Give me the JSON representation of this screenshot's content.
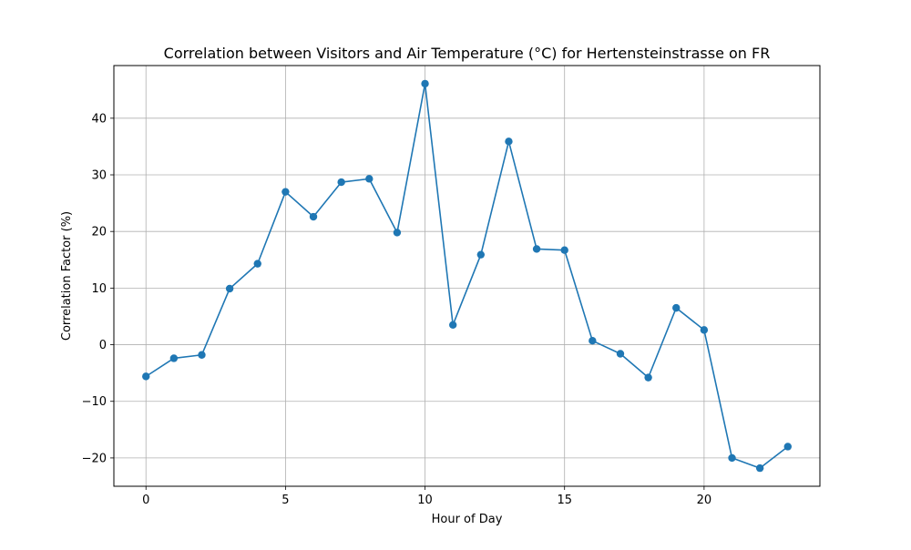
{
  "chart_data": {
    "type": "line",
    "title": "Correlation between Visitors and Air Temperature (°C) for Hertensteinstrasse on FR",
    "xlabel": "Hour of Day",
    "ylabel": "Correlation Factor (%)",
    "xlim": [
      -1.15,
      24.15
    ],
    "ylim": [
      -25.0,
      49.3
    ],
    "xticks": [
      0,
      5,
      10,
      15,
      20
    ],
    "yticks": [
      -20,
      -10,
      0,
      10,
      20,
      30,
      40
    ],
    "xtick_labels": [
      "0",
      "5",
      "10",
      "15",
      "20"
    ],
    "ytick_labels": [
      "−20",
      "−10",
      "0",
      "10",
      "20",
      "30",
      "40"
    ],
    "grid": true,
    "color": "#1f77b4",
    "series": [
      {
        "x": [
          0,
          1,
          2,
          3,
          4,
          5,
          6,
          7,
          8,
          9,
          10,
          11,
          12,
          13,
          14,
          15,
          16,
          17,
          18,
          19,
          20,
          21,
          22,
          23
        ],
        "values": [
          -5.6,
          -2.4,
          -1.8,
          9.9,
          14.3,
          27.0,
          22.6,
          28.7,
          29.3,
          19.8,
          46.1,
          3.5,
          15.9,
          35.9,
          16.9,
          16.7,
          0.7,
          -1.6,
          -5.8,
          6.5,
          2.6,
          -20.0,
          -21.8,
          -18.0
        ]
      }
    ]
  }
}
